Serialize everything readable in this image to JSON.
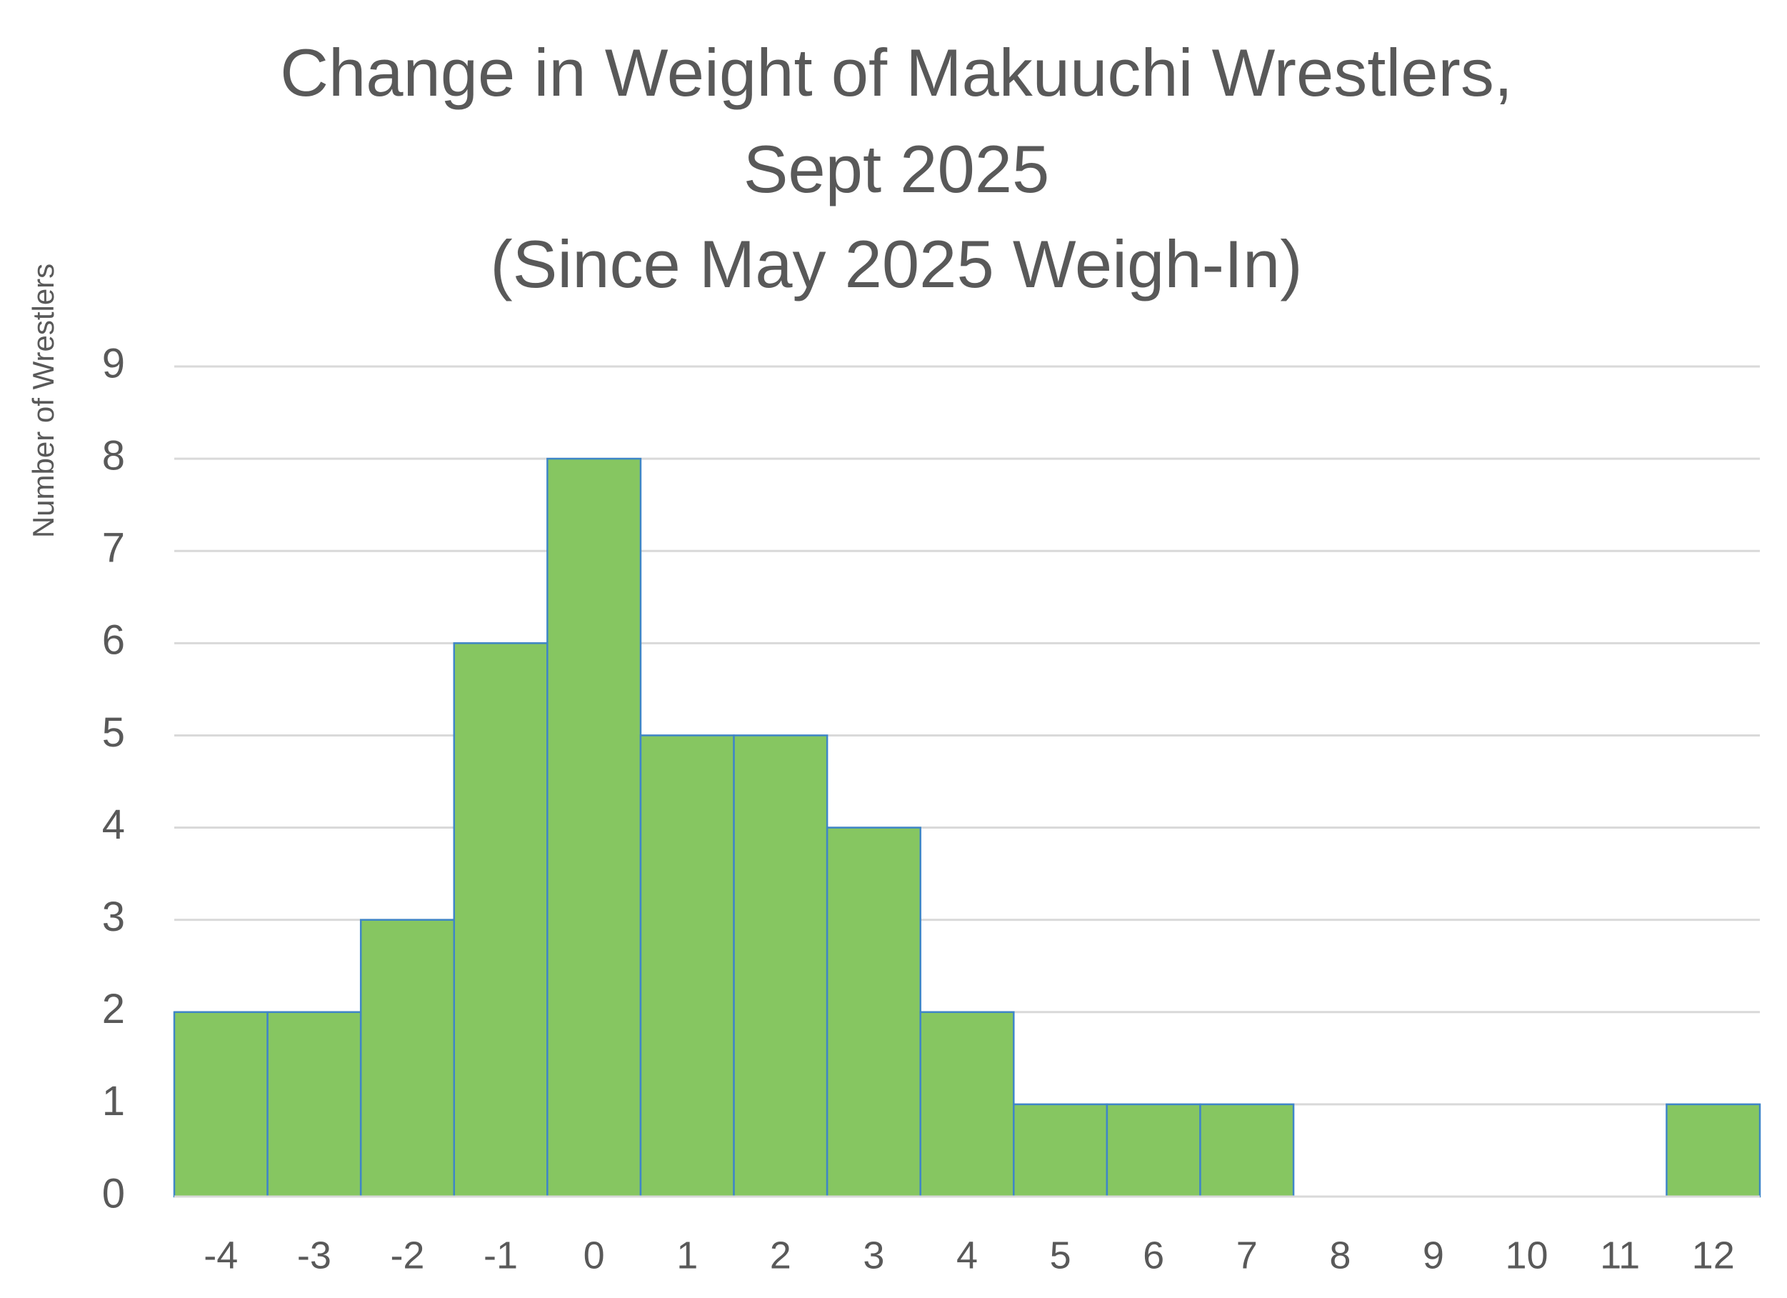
{
  "chart_data": {
    "type": "bar",
    "title": [
      "Change in Weight of Makuuchi Wrestlers,",
      "Sept 2025",
      "(Since May 2025 Weigh-In)"
    ],
    "y_label": "Number of Wrestlers",
    "categories": [
      "-4",
      "-3",
      "-2",
      "-1",
      "0",
      "1",
      "2",
      "3",
      "4",
      "5",
      "6",
      "7",
      "8",
      "9",
      "10",
      "11",
      "12"
    ],
    "values": [
      2,
      2,
      3,
      6,
      8,
      5,
      5,
      4,
      2,
      1,
      1,
      1,
      0,
      0,
      0,
      0,
      1
    ],
    "color": "#86c661",
    "edgecolor": "#3f86c8",
    "ylim": [
      0,
      9
    ],
    "yticks": [
      0,
      1,
      2,
      3,
      4,
      5,
      6,
      7,
      8,
      9
    ],
    "grid": true
  }
}
